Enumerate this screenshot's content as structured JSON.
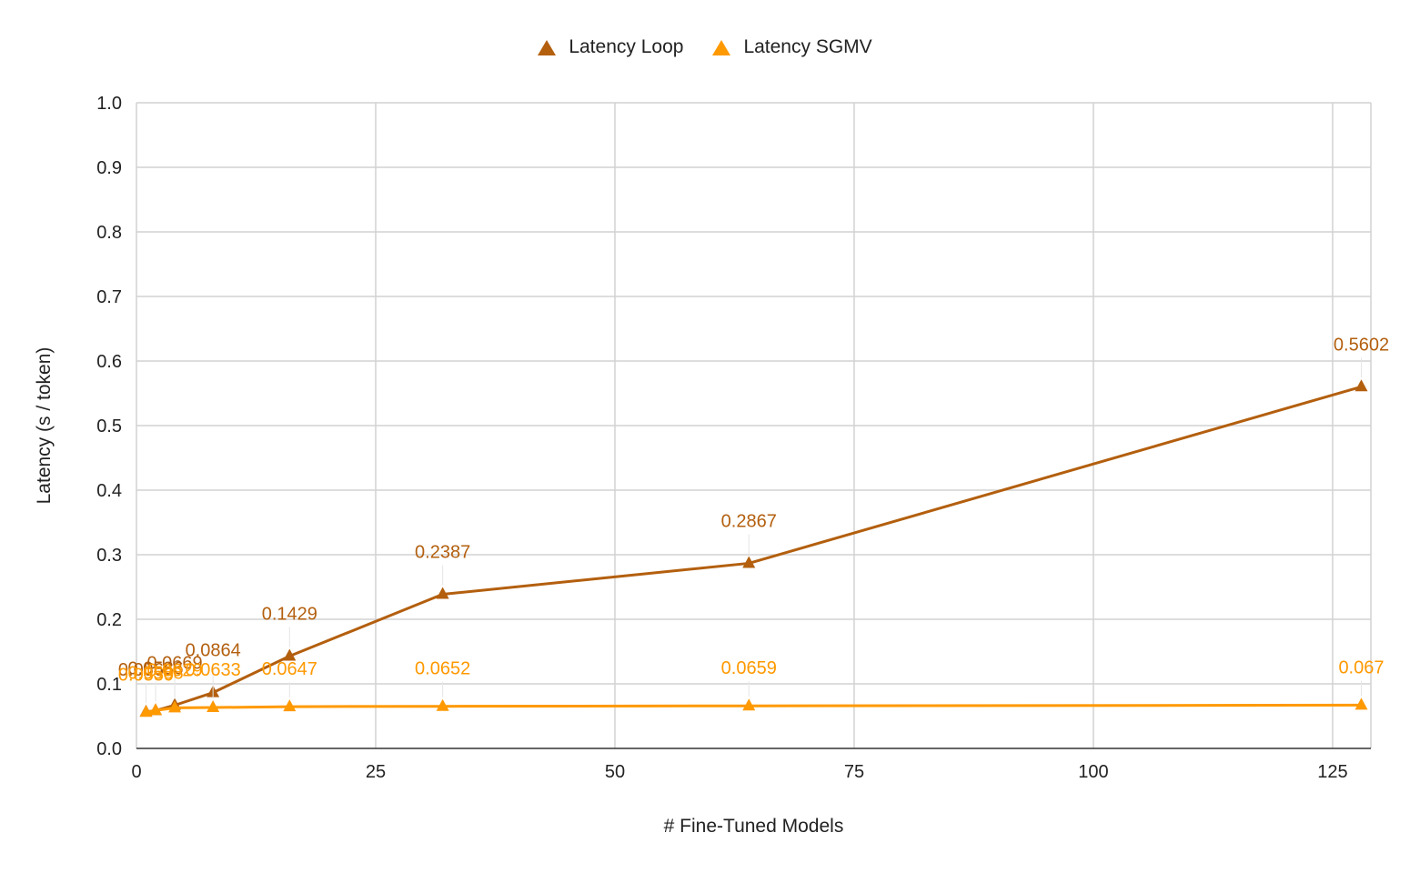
{
  "chart_data": {
    "type": "line",
    "title": "",
    "xlabel": "# Fine-Tuned Models",
    "ylabel": "Latency (s / token)",
    "xlim": [
      0,
      129
    ],
    "ylim": [
      0,
      1.0
    ],
    "x_ticks": [
      "0",
      "25",
      "50",
      "75",
      "100",
      "125"
    ],
    "y_ticks": [
      "0.0",
      "0.1",
      "0.2",
      "0.3",
      "0.4",
      "0.5",
      "0.6",
      "0.7",
      "0.8",
      "0.9",
      "1.0"
    ],
    "grid": true,
    "legend_position": "top",
    "x": [
      1,
      2,
      4,
      8,
      16,
      32,
      64,
      128
    ],
    "series": [
      {
        "name": "Latency Loop",
        "color": "#b35f0e",
        "marker": "triangle",
        "values": [
          0.0566,
          0.0586,
          0.0669,
          0.0864,
          0.1429,
          0.2387,
          0.2867,
          0.5602
        ],
        "labels": [
          "0.0566",
          "0.0586",
          "0.0669",
          "0.0864",
          "0.1429",
          "0.2387",
          "0.2867",
          "0.5602"
        ]
      },
      {
        "name": "Latency SGMV",
        "color": "#ff9900",
        "marker": "triangle",
        "values": [
          0.0559,
          0.0588,
          0.0629,
          0.0633,
          0.0647,
          0.0652,
          0.0659,
          0.067
        ],
        "labels": [
          "0.0559",
          "0.0588",
          "0.0629",
          "0.0633",
          "0.0647",
          "0.0652",
          "0.0659",
          "0.067"
        ]
      }
    ]
  }
}
